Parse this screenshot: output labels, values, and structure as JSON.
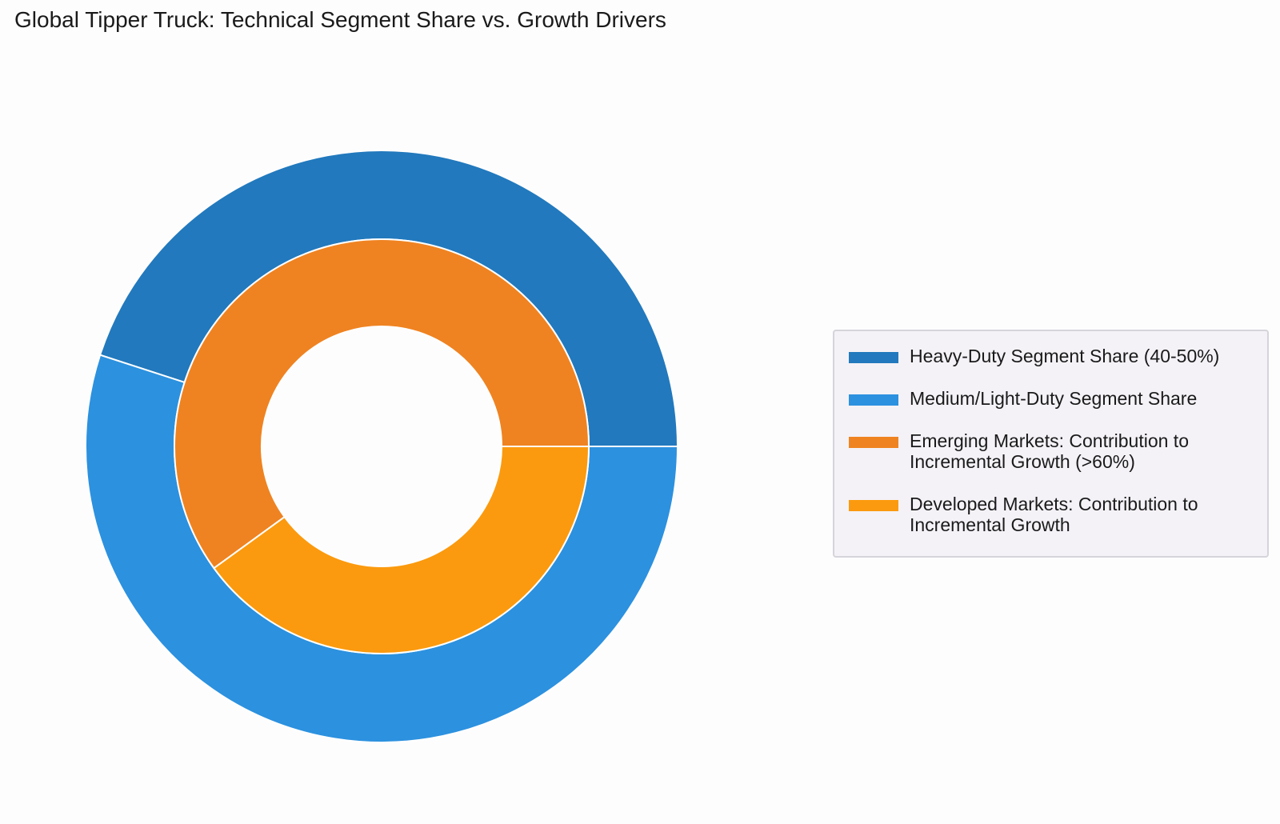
{
  "title": "Global Tipper Truck: Technical Segment Share vs. Growth Drivers",
  "chart_data": {
    "type": "pie",
    "subtype": "nested-donut",
    "rings": [
      {
        "ring": "outer",
        "slices": [
          {
            "label": "Heavy-Duty Segment Share (40-50%)",
            "value": 45,
            "color": "#2279bd"
          },
          {
            "label": "Medium/Light-Duty Segment Share",
            "value": 55,
            "color": "#2c91df"
          }
        ]
      },
      {
        "ring": "inner",
        "slices": [
          {
            "label": "Emerging Markets: Contribution to\nIncremental Growth (>60%)",
            "value": 60,
            "color": "#ef8321"
          },
          {
            "label": "Developed Markets: Contribution to\nIncremental Growth",
            "value": 40,
            "color": "#fb9a0e"
          }
        ]
      }
    ],
    "start_angle": "3 o'clock, counterclockwise",
    "legend_position": "right"
  }
}
